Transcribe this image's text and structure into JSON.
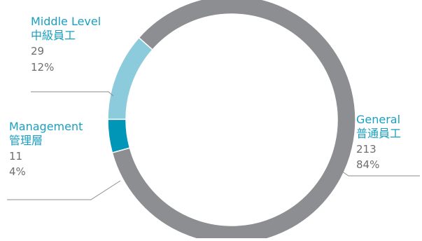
{
  "chart_data": {
    "type": "pie",
    "title": "",
    "categories": [
      "Middle Level",
      "Management",
      "General"
    ],
    "series": [
      {
        "values": [
          29,
          11,
          213
        ]
      }
    ],
    "slices": [
      {
        "label_en": "Middle Level",
        "label_zh": "中級員工",
        "count": 29,
        "count_text": "29",
        "percent_text": "12%",
        "color": "#8ccbdc"
      },
      {
        "label_en": "Management",
        "label_zh": "管理層",
        "count": 11,
        "count_text": "11",
        "percent_text": "4%",
        "color": "#0096b8"
      },
      {
        "label_en": "General",
        "label_zh": "普通員工",
        "count": 213,
        "count_text": "213",
        "percent_text": "84%",
        "color": "#8d8e91"
      }
    ],
    "style": "donut",
    "label_color": "#1a9fc0",
    "value_color": "#6d6e70",
    "leader_color": "#8a8c8e"
  }
}
